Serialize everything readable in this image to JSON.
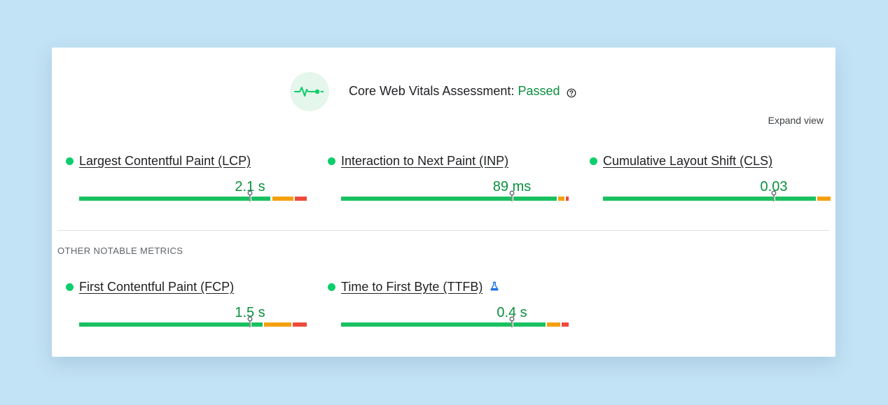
{
  "assessment": {
    "title": "Core Web Vitals Assessment:",
    "status": "Passed",
    "status_color": "#0a8f3e",
    "icon": "pulse-icon",
    "help_icon": "help-circle-icon"
  },
  "expand_view_label": "Expand view",
  "core_metrics": [
    {
      "name": "Largest Contentful Paint (LCP)",
      "value": "2.1 s",
      "status": "good",
      "marker_position": 0.75
    },
    {
      "name": "Interaction to Next Paint (INP)",
      "value": "89 ms",
      "status": "good",
      "marker_position": 0.75
    },
    {
      "name": "Cumulative Layout Shift (CLS)",
      "value": "0.03",
      "status": "good",
      "marker_position": 0.75
    }
  ],
  "other_section_label": "OTHER NOTABLE METRICS",
  "other_metrics": [
    {
      "name": "First Contentful Paint (FCP)",
      "value": "1.5 s",
      "status": "good",
      "marker_position": 0.75
    },
    {
      "name": "Time to First Byte (TTFB)",
      "value": "0.4 s",
      "status": "good",
      "marker_position": 0.75,
      "icon": "flask-icon"
    }
  ],
  "colors": {
    "good": "#19c160",
    "needs_improvement": "#f4a00f",
    "poor": "#ef4a3c",
    "good_text": "#0a8f3e",
    "dot": "#0cce6b"
  }
}
